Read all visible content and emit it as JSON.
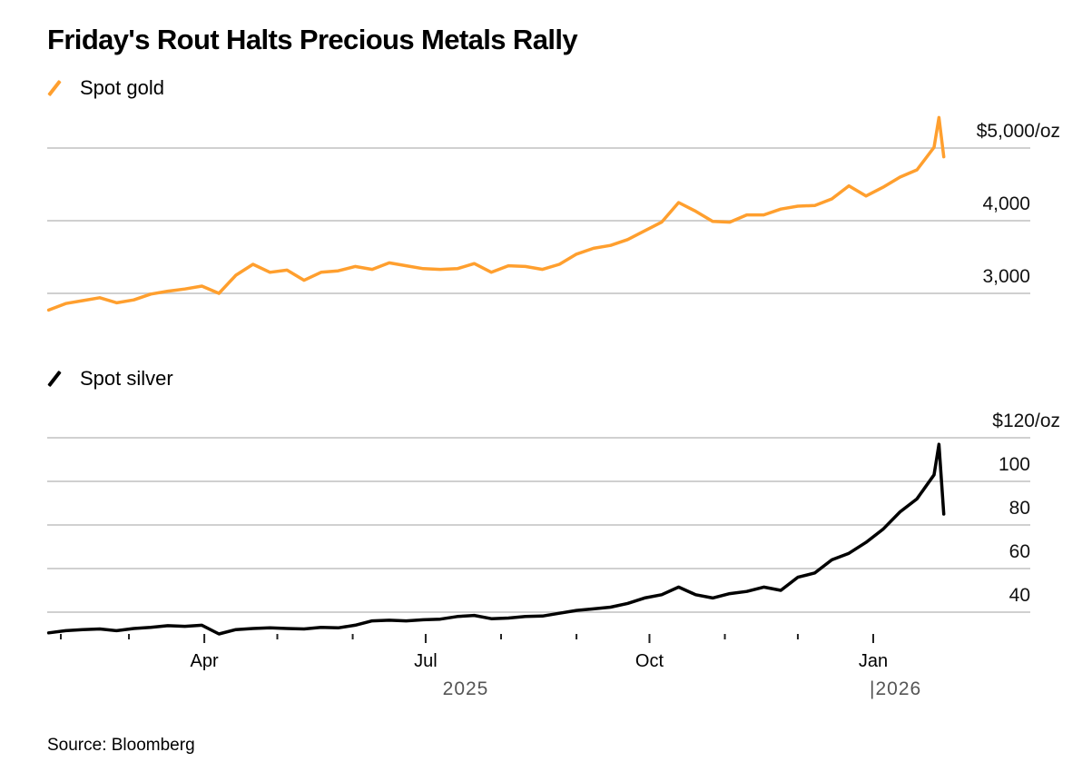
{
  "title": "Friday's Rout Halts Precious Metals Rally",
  "source": "Source: Bloomberg",
  "colors": {
    "gold": "#ff9f2e",
    "silver": "#000000",
    "grid": "#d0d0d0"
  },
  "chart_data": [
    {
      "type": "line",
      "title": "Spot gold",
      "legend": "Spot gold",
      "ylabel": "$/oz",
      "yticks": [
        3000,
        4000,
        5000
      ],
      "ytick_labels": [
        "3,000",
        "4,000",
        "$5,000/oz"
      ],
      "ylim": [
        2600,
        5500
      ],
      "grid": true,
      "x": [
        "2025-01-27",
        "2025-02-03",
        "2025-02-10",
        "2025-02-17",
        "2025-02-24",
        "2025-03-03",
        "2025-03-10",
        "2025-03-17",
        "2025-03-24",
        "2025-03-31",
        "2025-04-07",
        "2025-04-14",
        "2025-04-21",
        "2025-04-28",
        "2025-05-05",
        "2025-05-12",
        "2025-05-19",
        "2025-05-26",
        "2025-06-02",
        "2025-06-09",
        "2025-06-16",
        "2025-06-23",
        "2025-06-30",
        "2025-07-07",
        "2025-07-14",
        "2025-07-21",
        "2025-07-28",
        "2025-08-04",
        "2025-08-11",
        "2025-08-18",
        "2025-08-25",
        "2025-09-01",
        "2025-09-08",
        "2025-09-15",
        "2025-09-22",
        "2025-09-29",
        "2025-10-06",
        "2025-10-13",
        "2025-10-20",
        "2025-10-27",
        "2025-11-03",
        "2025-11-10",
        "2025-11-17",
        "2025-11-24",
        "2025-12-01",
        "2025-12-08",
        "2025-12-15",
        "2025-12-22",
        "2025-12-29",
        "2026-01-05",
        "2026-01-12",
        "2026-01-19",
        "2026-01-26",
        "2026-01-28",
        "2026-01-30"
      ],
      "values": [
        2770,
        2860,
        2900,
        2940,
        2870,
        2910,
        2990,
        3030,
        3060,
        3100,
        3000,
        3250,
        3400,
        3290,
        3320,
        3180,
        3290,
        3310,
        3370,
        3330,
        3420,
        3380,
        3340,
        3330,
        3340,
        3410,
        3290,
        3380,
        3370,
        3330,
        3400,
        3540,
        3620,
        3660,
        3740,
        3860,
        3980,
        4250,
        4130,
        3990,
        3980,
        4080,
        4080,
        4160,
        4200,
        4210,
        4300,
        4480,
        4340,
        4460,
        4600,
        4700,
        5010,
        5420,
        4880
      ]
    },
    {
      "type": "line",
      "title": "Spot silver",
      "legend": "Spot silver",
      "ylabel": "$/oz",
      "yticks": [
        40,
        60,
        80,
        100,
        120
      ],
      "ytick_labels": [
        "40",
        "60",
        "80",
        "100",
        "$120/oz"
      ],
      "ylim": [
        30,
        125
      ],
      "grid": true,
      "x": [
        "2025-01-27",
        "2025-02-03",
        "2025-02-10",
        "2025-02-17",
        "2025-02-24",
        "2025-03-03",
        "2025-03-10",
        "2025-03-17",
        "2025-03-24",
        "2025-03-31",
        "2025-04-07",
        "2025-04-14",
        "2025-04-21",
        "2025-04-28",
        "2025-05-05",
        "2025-05-12",
        "2025-05-19",
        "2025-05-26",
        "2025-06-02",
        "2025-06-09",
        "2025-06-16",
        "2025-06-23",
        "2025-06-30",
        "2025-07-07",
        "2025-07-14",
        "2025-07-21",
        "2025-07-28",
        "2025-08-04",
        "2025-08-11",
        "2025-08-18",
        "2025-08-25",
        "2025-09-01",
        "2025-09-08",
        "2025-09-15",
        "2025-09-22",
        "2025-09-29",
        "2025-10-06",
        "2025-10-13",
        "2025-10-20",
        "2025-10-27",
        "2025-11-03",
        "2025-11-10",
        "2025-11-17",
        "2025-11-24",
        "2025-12-01",
        "2025-12-08",
        "2025-12-15",
        "2025-12-22",
        "2025-12-29",
        "2026-01-05",
        "2026-01-12",
        "2026-01-19",
        "2026-01-26",
        "2026-01-28",
        "2026-01-30"
      ],
      "values": [
        30.5,
        31.5,
        32,
        32.3,
        31.5,
        32.5,
        33,
        33.8,
        33.5,
        34,
        30,
        32,
        32.5,
        32.8,
        32.5,
        32.3,
        33,
        32.8,
        34,
        36,
        36.3,
        36,
        36.5,
        36.8,
        38,
        38.5,
        37,
        37.3,
        38,
        38.2,
        39.5,
        40.8,
        41.5,
        42.3,
        44,
        46.5,
        48,
        51.5,
        48,
        46.5,
        48.5,
        49.5,
        51.5,
        50,
        56,
        58,
        64,
        67,
        72,
        78,
        86,
        92,
        103,
        117,
        85
      ]
    }
  ],
  "x_axis": {
    "tick_labels": [
      "Apr",
      "Jul",
      "Oct",
      "Jan"
    ],
    "year_labels": [
      "2025",
      "|2026"
    ]
  }
}
